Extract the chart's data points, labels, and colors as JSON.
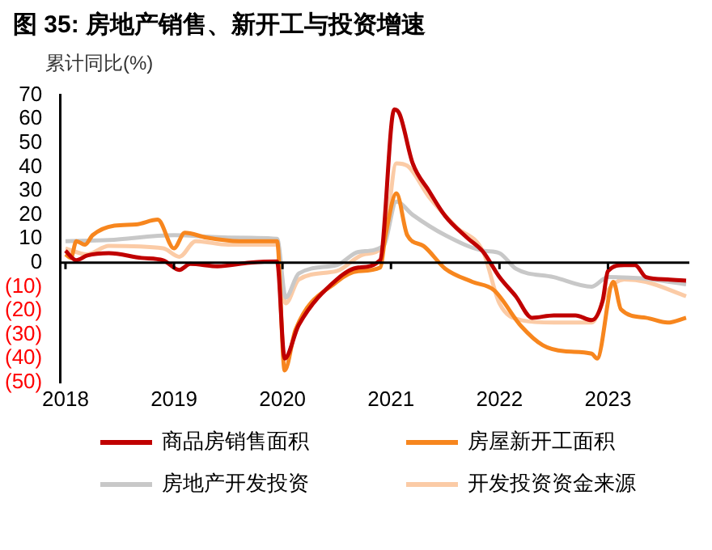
{
  "chart_data": {
    "type": "line",
    "title": "图 35: 房地产销售、新开工与投资增速",
    "ylabel": "累计同比(%)",
    "xlim": [
      2017.95,
      2023.75
    ],
    "xticks": [
      2018,
      2019,
      2020,
      2021,
      2022,
      2023
    ],
    "ylim": [
      -50,
      70
    ],
    "yticks": [
      {
        "value": -50,
        "label": "(50)"
      },
      {
        "value": -40,
        "label": "(40)"
      },
      {
        "value": -30,
        "label": "(30)"
      },
      {
        "value": -20,
        "label": "(20)"
      },
      {
        "value": -10,
        "label": "(10)"
      },
      0,
      10,
      20,
      30,
      40,
      50,
      60,
      70
    ],
    "grid": false,
    "ref_lines": [
      {
        "axis": "y",
        "value": 0,
        "color": "#000000"
      }
    ],
    "legend": "bottom",
    "marker": "none",
    "line_style": "solid",
    "series": [
      {
        "name": "商品房销售面积",
        "color": "#c00000",
        "x": [
          2018,
          2018.1,
          2018.2,
          2018.4,
          2018.7,
          2018.9,
          2019.05,
          2019.15,
          2019.4,
          2019.7,
          2019.95,
          2020.02,
          2020.15,
          2020.5,
          2020.7,
          2020.9,
          2021.03,
          2021.08,
          2021.2,
          2021.35,
          2021.5,
          2021.7,
          2021.85,
          2022,
          2022.15,
          2022.3,
          2022.5,
          2022.7,
          2022.85,
          2022.95,
          2023,
          2023.15,
          2023.25,
          2023.35,
          2023.55,
          2023.72
        ],
        "values": [
          5,
          1,
          3,
          4,
          2,
          1,
          -3,
          -0.5,
          -1.5,
          0,
          0.5,
          -40,
          -26,
          -7,
          -2,
          1,
          64,
          62,
          41.5,
          30,
          19.5,
          10.5,
          4.5,
          -6,
          -14,
          -23,
          -22,
          -22,
          -24,
          -16,
          -3.5,
          -1,
          -1,
          -6,
          -7,
          -7.5
        ]
      },
      {
        "name": "房屋新开工面积",
        "color": "#f7861e",
        "x": [
          2018,
          2018.05,
          2018.1,
          2018.18,
          2018.25,
          2018.45,
          2018.65,
          2018.85,
          2019,
          2019.1,
          2019.3,
          2019.6,
          2019.95,
          2020.02,
          2020.12,
          2020.5,
          2020.7,
          2020.9,
          2020.95,
          2021.05,
          2021.15,
          2021.3,
          2021.5,
          2021.75,
          2021.95,
          2022.2,
          2022.4,
          2022.6,
          2022.85,
          2022.9,
          2023.05,
          2023.12,
          2023.35,
          2023.55,
          2023.72
        ],
        "values": [
          3.5,
          2,
          9,
          7.5,
          11.5,
          15.5,
          16,
          18,
          6,
          12.5,
          10.5,
          9,
          9,
          -45,
          -28,
          -8,
          -3.5,
          -2,
          11.5,
          29,
          11.5,
          7,
          -2.5,
          -8,
          -11.5,
          -26.5,
          -34.5,
          -37,
          -38,
          -40,
          -8,
          -19.5,
          -23,
          -25,
          -23
        ]
      },
      {
        "name": "房地产开发投资",
        "color": "#c8c8c8",
        "x": [
          2018,
          2018.4,
          2019,
          2019.5,
          2019.95,
          2020.03,
          2020.15,
          2020.5,
          2020.7,
          2020.93,
          2021.05,
          2021.2,
          2021.5,
          2021.85,
          2022,
          2022.15,
          2022.5,
          2022.85,
          2023,
          2023.3,
          2023.72
        ],
        "values": [
          9,
          9.5,
          11.5,
          10.5,
          10,
          -14.5,
          -4.5,
          -1,
          4.5,
          7,
          25.5,
          20,
          11.5,
          5,
          4,
          -2.5,
          -6,
          -10,
          -6,
          -6.5,
          -9
        ]
      },
      {
        "name": "开发投资资金来源",
        "color": "#fbcba6",
        "x": [
          2018,
          2018.2,
          2018.4,
          2018.9,
          2019.05,
          2019.2,
          2019.5,
          2019.95,
          2020.03,
          2020.15,
          2020.5,
          2020.75,
          2020.93,
          2021.05,
          2021.15,
          2021.35,
          2021.6,
          2021.85,
          2022,
          2022.2,
          2022.5,
          2022.85,
          2023,
          2023.15,
          2023.35,
          2023.72
        ],
        "values": [
          6,
          3.5,
          7,
          6,
          2.5,
          9,
          7.5,
          7.5,
          -17,
          -7,
          -3.5,
          3.5,
          7,
          41.5,
          40.5,
          27.5,
          15,
          4.5,
          -17,
          -24,
          -25,
          -25,
          -11.5,
          -7,
          -8,
          -14
        ]
      }
    ]
  }
}
